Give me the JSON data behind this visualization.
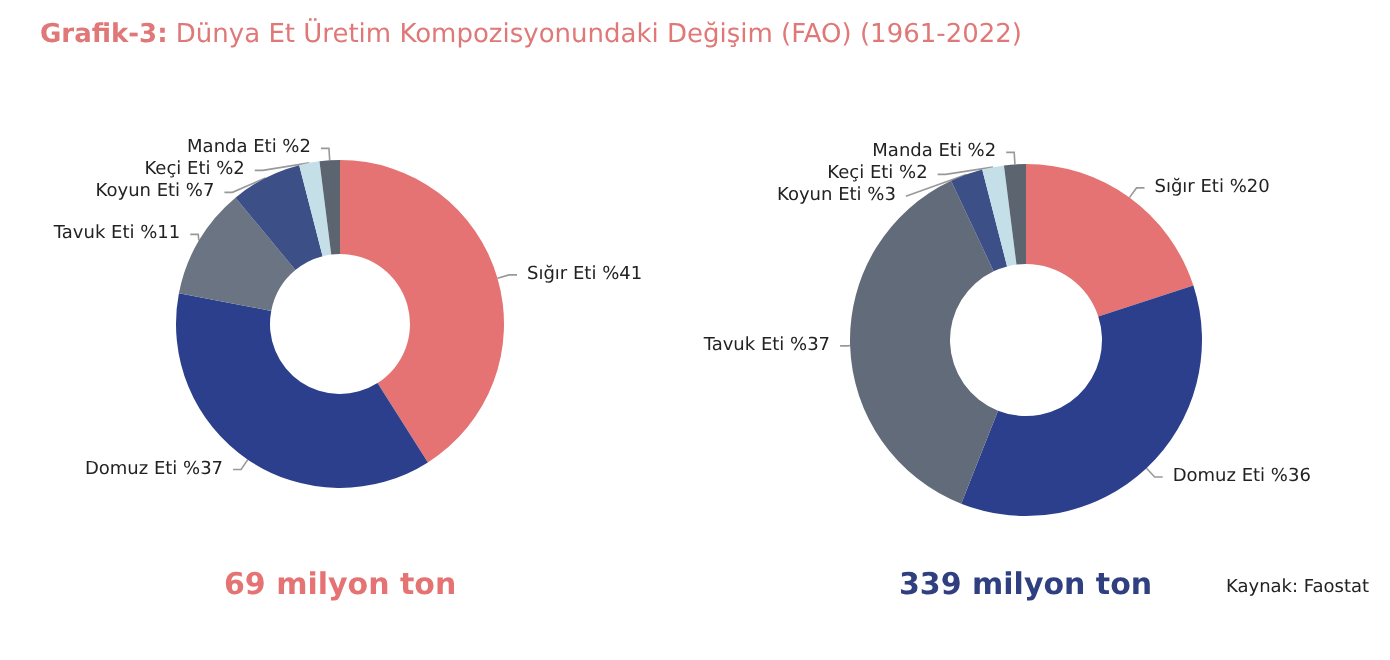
{
  "chart_data": [
    {
      "type": "donut",
      "title": "Grafik-3: Dünya Et Üretim Kompozisyonundaki Değişim (FAO) (1961-2022)",
      "categories": [
        "Sığır Eti",
        "Domuz Eti",
        "Tavuk Eti",
        "Koyun Eti",
        "Keçi Eti",
        "Manda Eti"
      ],
      "values": [
        41,
        37,
        11,
        7,
        2,
        2
      ],
      "value_labels": [
        "%41",
        "%37",
        "%11",
        "%7",
        "%2",
        "%2"
      ],
      "colors": [
        "#e57373",
        "#2b3f8c",
        "#6b7482",
        "#3d4f87",
        "#c5dfe8",
        "#5c6470"
      ],
      "annotations": [
        "69 milyon ton"
      ]
    },
    {
      "type": "donut",
      "categories": [
        "Sığır Eti",
        "Domuz Eti",
        "Tavuk Eti",
        "Koyun Eti",
        "Keçi Eti",
        "Manda Eti"
      ],
      "values": [
        20,
        36,
        37,
        3,
        2,
        2
      ],
      "value_labels": [
        "%20",
        "%36",
        "%37",
        "%3",
        "%2",
        "%2"
      ],
      "colors": [
        "#e57373",
        "#2b3f8c",
        "#626b7a",
        "#3d4f87",
        "#c5dfe8",
        "#5c6470"
      ],
      "annotations": [
        "339 milyon ton",
        "Kaynak: Faostat"
      ]
    }
  ]
}
